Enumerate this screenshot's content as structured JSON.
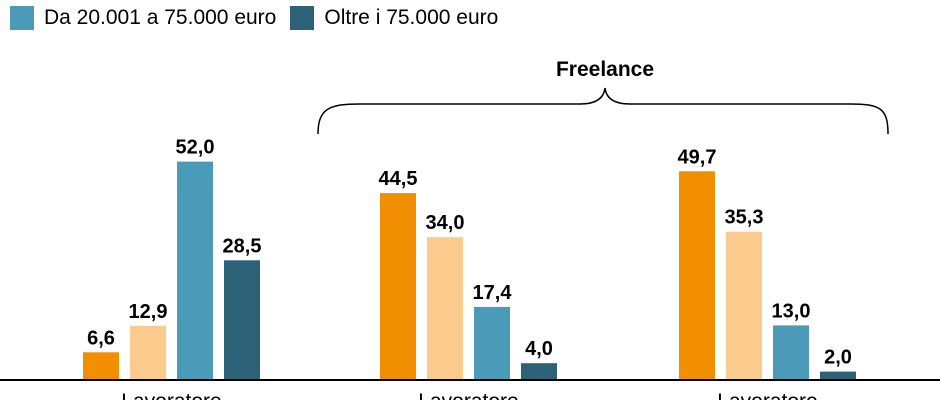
{
  "legend": [
    {
      "label": "Da 20.001 a 75.000 euro",
      "color": "#4b9ab8"
    },
    {
      "label": "Oltre i 75.000 euro",
      "color": "#2d6178"
    }
  ],
  "chart_data": {
    "type": "bar",
    "title": "",
    "group_annotation": "Freelance",
    "categories": [
      "Lavoratore",
      "Lavoratore",
      "Lavoratore"
    ],
    "series": [
      {
        "values": [
          6.6,
          44.5,
          49.7
        ],
        "color": "#f18f01"
      },
      {
        "values": [
          12.9,
          34.0,
          35.3
        ],
        "color": "#fbcb8e"
      },
      {
        "name": "Da 20.001 a 75.000 euro",
        "values": [
          52.0,
          17.4,
          13.0
        ],
        "color": "#4b9ab8"
      },
      {
        "name": "Oltre i 75.000 euro",
        "values": [
          28.5,
          4.0,
          2.0
        ],
        "color": "#2d6178"
      }
    ],
    "value_labels": [
      [
        "6,6",
        "44,5",
        "49,7"
      ],
      [
        "12,9",
        "34,0",
        "35,3"
      ],
      [
        "52,0",
        "17,4",
        "13,0"
      ],
      [
        "28,5",
        "4,0",
        "2,0"
      ]
    ],
    "ylim": [
      0,
      60
    ],
    "grid": false,
    "legend_position": "top-left"
  }
}
